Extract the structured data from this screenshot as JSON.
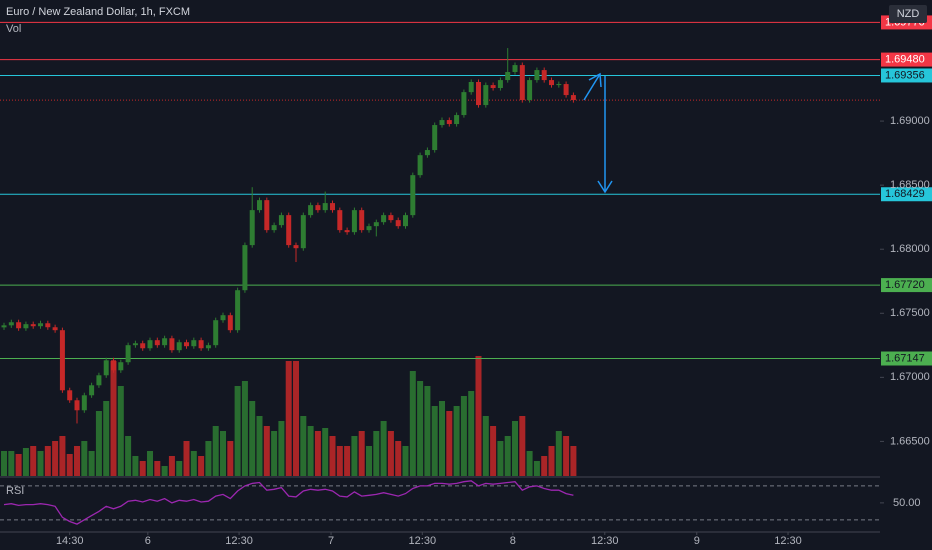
{
  "chart_data": {
    "type": "candlestick",
    "title": "Euro / New Zealand Dollar, 1h, FXCM",
    "volume_label": "Vol",
    "currency": "NZD",
    "up_color": "#2e7d32",
    "down_color": "#c62828",
    "open": [
      1.6739,
      1.67406,
      1.6743,
      1.67383,
      1.67415,
      1.67399,
      1.67422,
      1.67391,
      1.67368,
      1.66899,
      1.66821,
      1.66743,
      1.6686,
      1.66938,
      1.67016,
      1.67133,
      1.67055,
      1.67118,
      1.67251,
      1.67266,
      1.67227,
      1.6729,
      1.67251,
      1.67305,
      1.67212,
      1.67274,
      1.67243,
      1.6729,
      1.67227,
      1.67251,
      1.67446,
      1.67485,
      1.67368,
      1.6768,
      1.68032,
      1.68305,
      1.68383,
      1.68149,
      1.68188,
      1.68266,
      1.68032,
      1.68008,
      1.68266,
      1.68344,
      1.68305,
      1.6836,
      1.68305,
      1.68149,
      1.68133,
      1.68305,
      1.68149,
      1.6818,
      1.68211,
      1.68266,
      1.68227,
      1.6818,
      1.68266,
      1.68578,
      1.68734,
      1.68774,
      1.68969,
      1.69008,
      1.68977,
      1.69047,
      1.69226,
      1.69305,
      1.69125,
      1.69281,
      1.69258,
      1.6932,
      1.69383,
      1.69437,
      1.69164,
      1.6932,
      1.69398,
      1.6932,
      1.69281,
      1.69289,
      1.69203
    ],
    "high": [
      1.67426,
      1.6745,
      1.6745,
      1.67435,
      1.67435,
      1.67442,
      1.67442,
      1.67411,
      1.67388,
      1.66919,
      1.66841,
      1.6688,
      1.66958,
      1.67036,
      1.67153,
      1.67153,
      1.67138,
      1.67271,
      1.67286,
      1.67286,
      1.6731,
      1.6731,
      1.67325,
      1.67325,
      1.67294,
      1.67294,
      1.6731,
      1.6731,
      1.67271,
      1.67466,
      1.67505,
      1.67505,
      1.677,
      1.68052,
      1.68484,
      1.68403,
      1.68403,
      1.68208,
      1.68286,
      1.68286,
      1.68052,
      1.68286,
      1.68364,
      1.68364,
      1.6845,
      1.6838,
      1.68325,
      1.68169,
      1.68325,
      1.68325,
      1.682,
      1.68231,
      1.68286,
      1.68286,
      1.68247,
      1.68286,
      1.68598,
      1.68754,
      1.68794,
      1.68989,
      1.69028,
      1.69028,
      1.69067,
      1.69246,
      1.69325,
      1.69325,
      1.69301,
      1.69301,
      1.6934,
      1.6957,
      1.69457,
      1.69457,
      1.6934,
      1.69418,
      1.69418,
      1.6934,
      1.69309,
      1.69309,
      1.69223
    ],
    "low": [
      1.6737,
      1.67386,
      1.67363,
      1.67363,
      1.67379,
      1.67379,
      1.67371,
      1.67348,
      1.66879,
      1.66801,
      1.6664,
      1.66723,
      1.6684,
      1.66918,
      1.66996,
      1.67035,
      1.67035,
      1.67098,
      1.67231,
      1.67207,
      1.67207,
      1.67231,
      1.67231,
      1.67192,
      1.67192,
      1.67223,
      1.67223,
      1.67207,
      1.67207,
      1.67231,
      1.67426,
      1.67348,
      1.67348,
      1.6766,
      1.68012,
      1.68285,
      1.68129,
      1.68129,
      1.68168,
      1.68012,
      1.679,
      1.67988,
      1.68246,
      1.68285,
      1.68285,
      1.68285,
      1.68129,
      1.68113,
      1.68113,
      1.68129,
      1.68129,
      1.681,
      1.68191,
      1.68207,
      1.6816,
      1.6816,
      1.68246,
      1.68558,
      1.68714,
      1.68754,
      1.68949,
      1.68957,
      1.68957,
      1.69027,
      1.69206,
      1.69105,
      1.69105,
      1.69238,
      1.69238,
      1.693,
      1.69363,
      1.69144,
      1.69144,
      1.693,
      1.693,
      1.69261,
      1.69261,
      1.69183,
      1.69144
    ],
    "close": [
      1.67406,
      1.6743,
      1.67383,
      1.67415,
      1.67399,
      1.67422,
      1.67391,
      1.67368,
      1.66899,
      1.66821,
      1.66743,
      1.6686,
      1.66938,
      1.67016,
      1.67133,
      1.67055,
      1.67118,
      1.67251,
      1.67266,
      1.67227,
      1.6729,
      1.67251,
      1.67305,
      1.67212,
      1.67274,
      1.67243,
      1.6729,
      1.67227,
      1.67251,
      1.67446,
      1.67485,
      1.67368,
      1.6768,
      1.68032,
      1.68305,
      1.68383,
      1.68149,
      1.68188,
      1.68266,
      1.68032,
      1.68008,
      1.68266,
      1.68344,
      1.68305,
      1.6836,
      1.68305,
      1.68149,
      1.68133,
      1.68305,
      1.68149,
      1.6818,
      1.68211,
      1.68266,
      1.68227,
      1.6818,
      1.68266,
      1.68578,
      1.68734,
      1.68774,
      1.68969,
      1.69008,
      1.68977,
      1.69047,
      1.69226,
      1.69305,
      1.69125,
      1.69281,
      1.69258,
      1.6932,
      1.69383,
      1.69437,
      1.69164,
      1.6932,
      1.69398,
      1.6932,
      1.69281,
      1.69289,
      1.69203,
      1.69164
    ],
    "volume": [
      25,
      25,
      22,
      28,
      30,
      25,
      30,
      35,
      40,
      22,
      30,
      35,
      25,
      65,
      75,
      115,
      90,
      40,
      20,
      15,
      25,
      15,
      10,
      20,
      15,
      35,
      25,
      20,
      35,
      50,
      45,
      35,
      90,
      95,
      75,
      60,
      50,
      45,
      55,
      115,
      115,
      60,
      50,
      45,
      48,
      40,
      30,
      30,
      40,
      45,
      30,
      45,
      55,
      45,
      35,
      30,
      105,
      95,
      90,
      70,
      75,
      65,
      70,
      80,
      85,
      120,
      60,
      50,
      35,
      40,
      55,
      60,
      25,
      15,
      20,
      30,
      45,
      40,
      30
    ],
    "volume_lim": [
      0,
      120
    ],
    "ylim": [
      1.6623,
      1.69945
    ],
    "yticks": [
      {
        "value": 1.69,
        "label": "1.69000"
      },
      {
        "value": 1.685,
        "label": "1.68500"
      },
      {
        "value": 1.68,
        "label": "1.68000"
      },
      {
        "value": 1.675,
        "label": "1.67500"
      },
      {
        "value": 1.67,
        "label": "1.67000"
      },
      {
        "value": 1.665,
        "label": "1.66500"
      }
    ],
    "xlim": [
      -0.55,
      120
    ],
    "xticks": [
      {
        "value": 9,
        "label": "14:30"
      },
      {
        "value": 19.7,
        "label": "6"
      },
      {
        "value": 32.2,
        "label": "12:30"
      },
      {
        "value": 44.8,
        "label": "7"
      },
      {
        "value": 57.3,
        "label": "12:30"
      },
      {
        "value": 69.7,
        "label": "8"
      },
      {
        "value": 82.3,
        "label": "12:30"
      },
      {
        "value": 94.9,
        "label": "9"
      },
      {
        "value": 107.4,
        "label": "12:30"
      }
    ],
    "levels": [
      {
        "value": 1.6977,
        "label": "1.69770",
        "color": "#f23645"
      },
      {
        "value": 1.6948,
        "label": "1.69480",
        "color": "#f23645"
      },
      {
        "value": 1.69356,
        "label": "1.69356",
        "color": "#26c6da"
      },
      {
        "value": 1.68429,
        "label": "1.68429",
        "color": "#26c6da"
      },
      {
        "value": 1.6772,
        "label": "1.67720",
        "color": "#4caf50"
      },
      {
        "value": 1.67147,
        "label": "1.67147",
        "color": "#4caf50"
      }
    ],
    "rsi": {
      "label": "RSI",
      "color": "#9c27b0",
      "ylim": [
        18,
        77
      ],
      "bands": [
        70,
        30
      ],
      "yticks": [
        {
          "value": 50,
          "label": "50.00"
        }
      ],
      "values": [
        48,
        49,
        47,
        48,
        48,
        49,
        48,
        46,
        33,
        28,
        25,
        30,
        35,
        40,
        46,
        43,
        46,
        52,
        53,
        51,
        54,
        52,
        55,
        50,
        53,
        52,
        54,
        51,
        52,
        58,
        60,
        55,
        64,
        70,
        73,
        74,
        65,
        66,
        68,
        58,
        57,
        64,
        66,
        65,
        66,
        64,
        58,
        57,
        63,
        58,
        59,
        60,
        62,
        60,
        58,
        61,
        67,
        70,
        70,
        73,
        73,
        72,
        73,
        75,
        76,
        70,
        73,
        72,
        73,
        74,
        75,
        65,
        69,
        70,
        67,
        65,
        65,
        61,
        59
      ]
    }
  }
}
